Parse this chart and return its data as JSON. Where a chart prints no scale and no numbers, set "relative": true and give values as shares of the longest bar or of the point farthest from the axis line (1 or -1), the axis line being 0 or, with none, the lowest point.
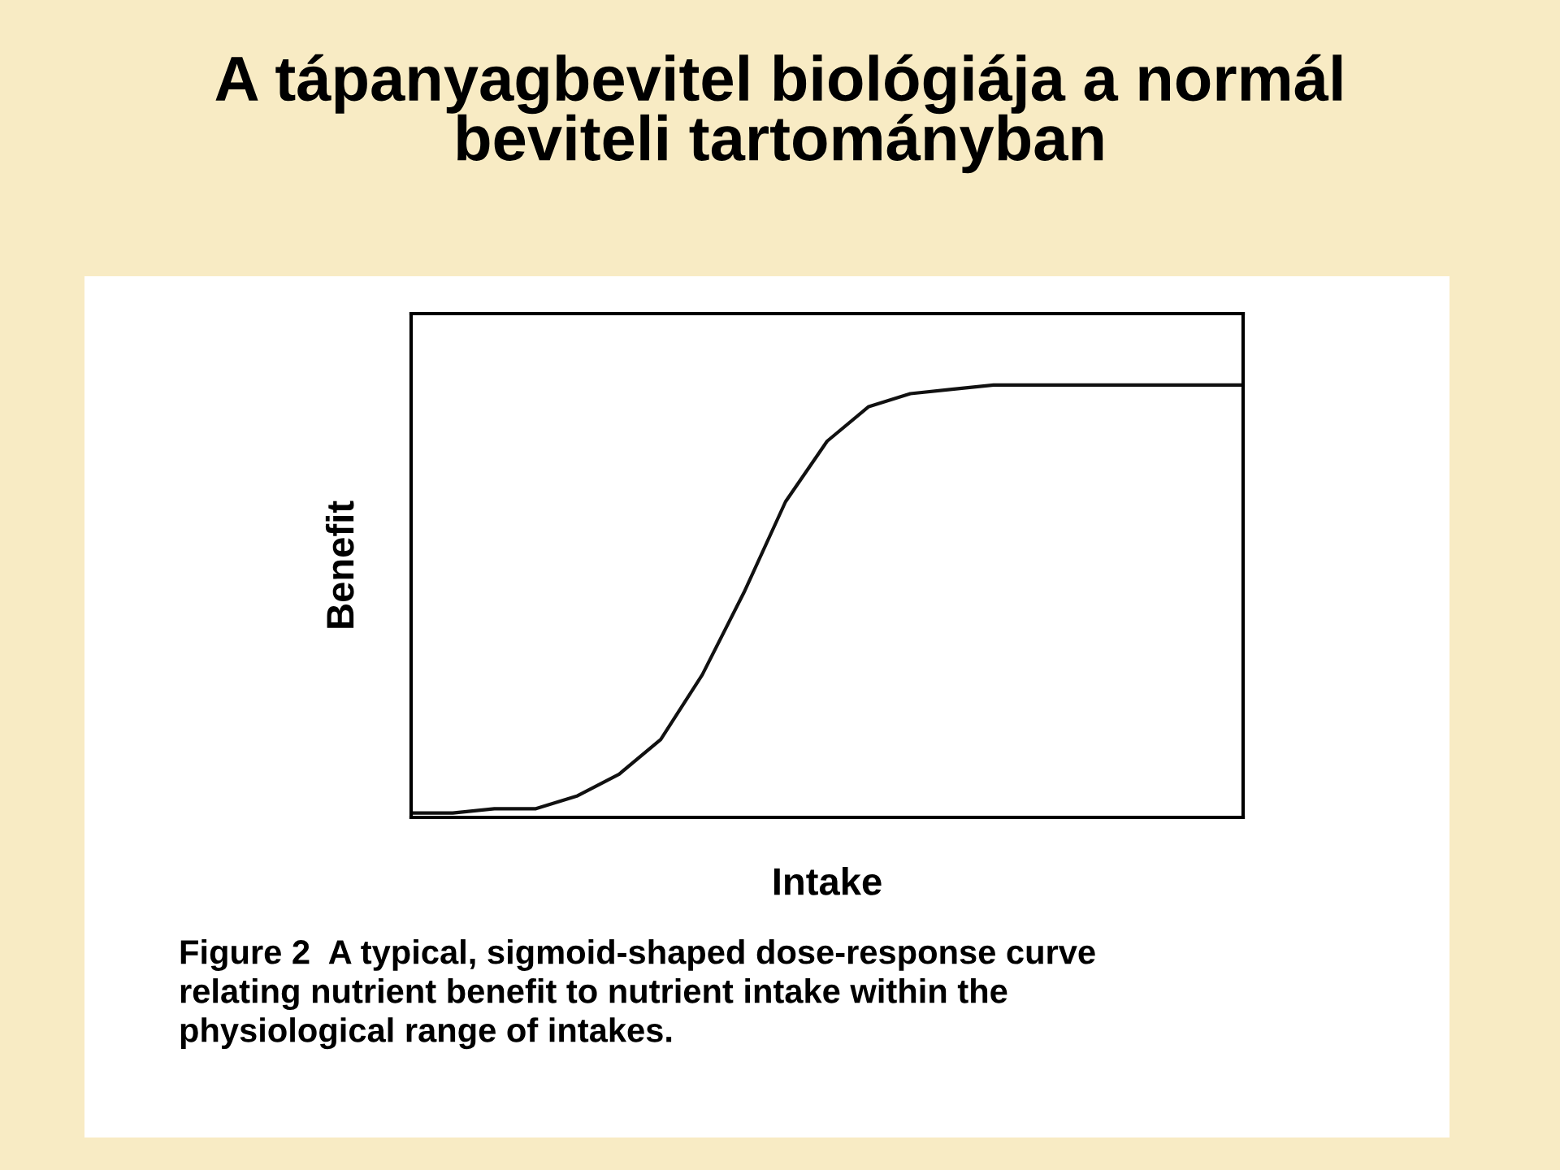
{
  "chart_data": {
    "type": "line",
    "title": "A tápanyagbevitel biológiája a normál\nbeviteli tartományban",
    "xlabel": "Intake",
    "ylabel": "Benefit",
    "annotations": [
      "Figure 2  A typical, sigmoid-shaped dose-response curve\nrelating nutrient benefit to nutrient intake within the\nphysiological range of intakes."
    ],
    "categories": [
      null,
      null,
      null,
      null,
      null,
      null,
      null,
      null,
      null,
      null,
      null,
      null,
      null,
      null,
      null,
      null,
      null,
      null,
      null,
      null,
      null
    ],
    "series": [
      {
        "color": "#111111",
        "values": [
          0.01,
          0.01,
          0.02,
          0.02,
          0.05,
          0.1,
          0.18,
          0.33,
          0.52,
          0.73,
          0.87,
          0.95,
          0.98,
          0.99,
          1.0,
          1.0,
          1.0,
          1.0,
          1.0,
          1.0,
          1.0
        ]
      }
    ],
    "relative": true,
    "tick_labels": false,
    "grid": false,
    "legend": false,
    "marker": "none",
    "line_style": "solid"
  }
}
